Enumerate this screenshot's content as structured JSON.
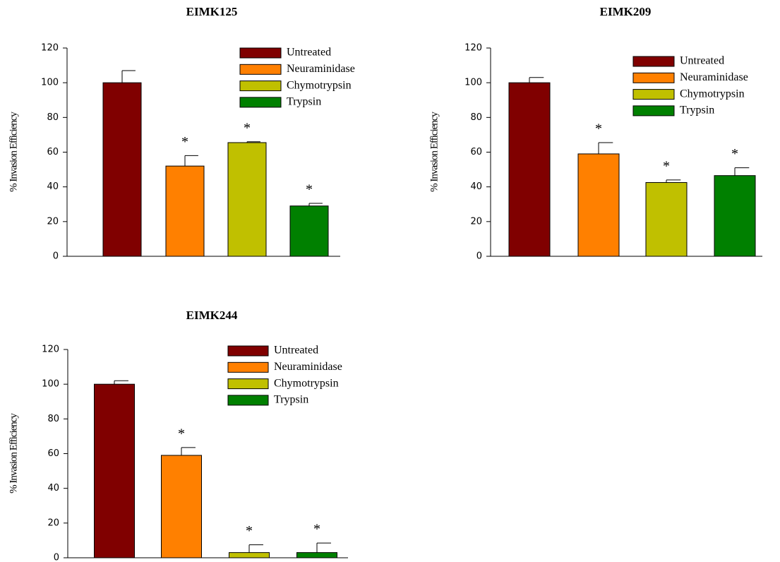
{
  "chart_data": [
    {
      "type": "bar",
      "title": "EIMK125",
      "ylabel": "% Invasion Efficiency",
      "ylim": [
        0,
        120
      ],
      "yticks": [
        0,
        20,
        40,
        60,
        80,
        100,
        120
      ],
      "series": [
        {
          "name": "Untreated",
          "color": "#800000",
          "values": [
            100
          ],
          "errors": [
            7
          ]
        },
        {
          "name": "Neuraminidase",
          "color": "#ff8000",
          "values": [
            52
          ],
          "errors": [
            6
          ],
          "annotation": "*"
        },
        {
          "name": "Chymotrypsin",
          "color": "#c0c000",
          "values": [
            65.5
          ],
          "errors": [
            0.5
          ],
          "annotation": "*"
        },
        {
          "name": "Trypsin",
          "color": "#008000",
          "values": [
            29
          ],
          "errors": [
            1.5
          ],
          "annotation": "*"
        }
      ]
    },
    {
      "type": "bar",
      "title": "EIMK209",
      "ylabel": "% Invasion Efficiency",
      "ylim": [
        0,
        120
      ],
      "yticks": [
        0,
        20,
        40,
        60,
        80,
        100,
        120
      ],
      "series": [
        {
          "name": "Untreated",
          "color": "#800000",
          "values": [
            100
          ],
          "errors": [
            3
          ]
        },
        {
          "name": "Neuraminidase",
          "color": "#ff8000",
          "values": [
            59
          ],
          "errors": [
            6.5
          ],
          "annotation": "*"
        },
        {
          "name": "Chymotrypsin",
          "color": "#c0c000",
          "values": [
            42.5
          ],
          "errors": [
            1.5
          ],
          "annotation": "*"
        },
        {
          "name": "Trypsin",
          "color": "#008000",
          "values": [
            46.5
          ],
          "errors": [
            4.5
          ],
          "annotation": "*"
        }
      ]
    },
    {
      "type": "bar",
      "title": "EIMK244",
      "ylabel": "% Invasion Efficiency",
      "ylim": [
        0,
        120
      ],
      "yticks": [
        0,
        20,
        40,
        60,
        80,
        100,
        120
      ],
      "series": [
        {
          "name": "Untreated",
          "color": "#800000",
          "values": [
            100
          ],
          "errors": [
            2
          ]
        },
        {
          "name": "Neuraminidase",
          "color": "#ff8000",
          "values": [
            59
          ],
          "errors": [
            4.5
          ],
          "annotation": "*"
        },
        {
          "name": "Chymotrypsin",
          "color": "#c0c000",
          "values": [
            3
          ],
          "errors": [
            4.5
          ],
          "annotation": "*"
        },
        {
          "name": "Trypsin",
          "color": "#008000",
          "values": [
            3
          ],
          "errors": [
            5.5
          ],
          "annotation": "*"
        }
      ]
    }
  ]
}
